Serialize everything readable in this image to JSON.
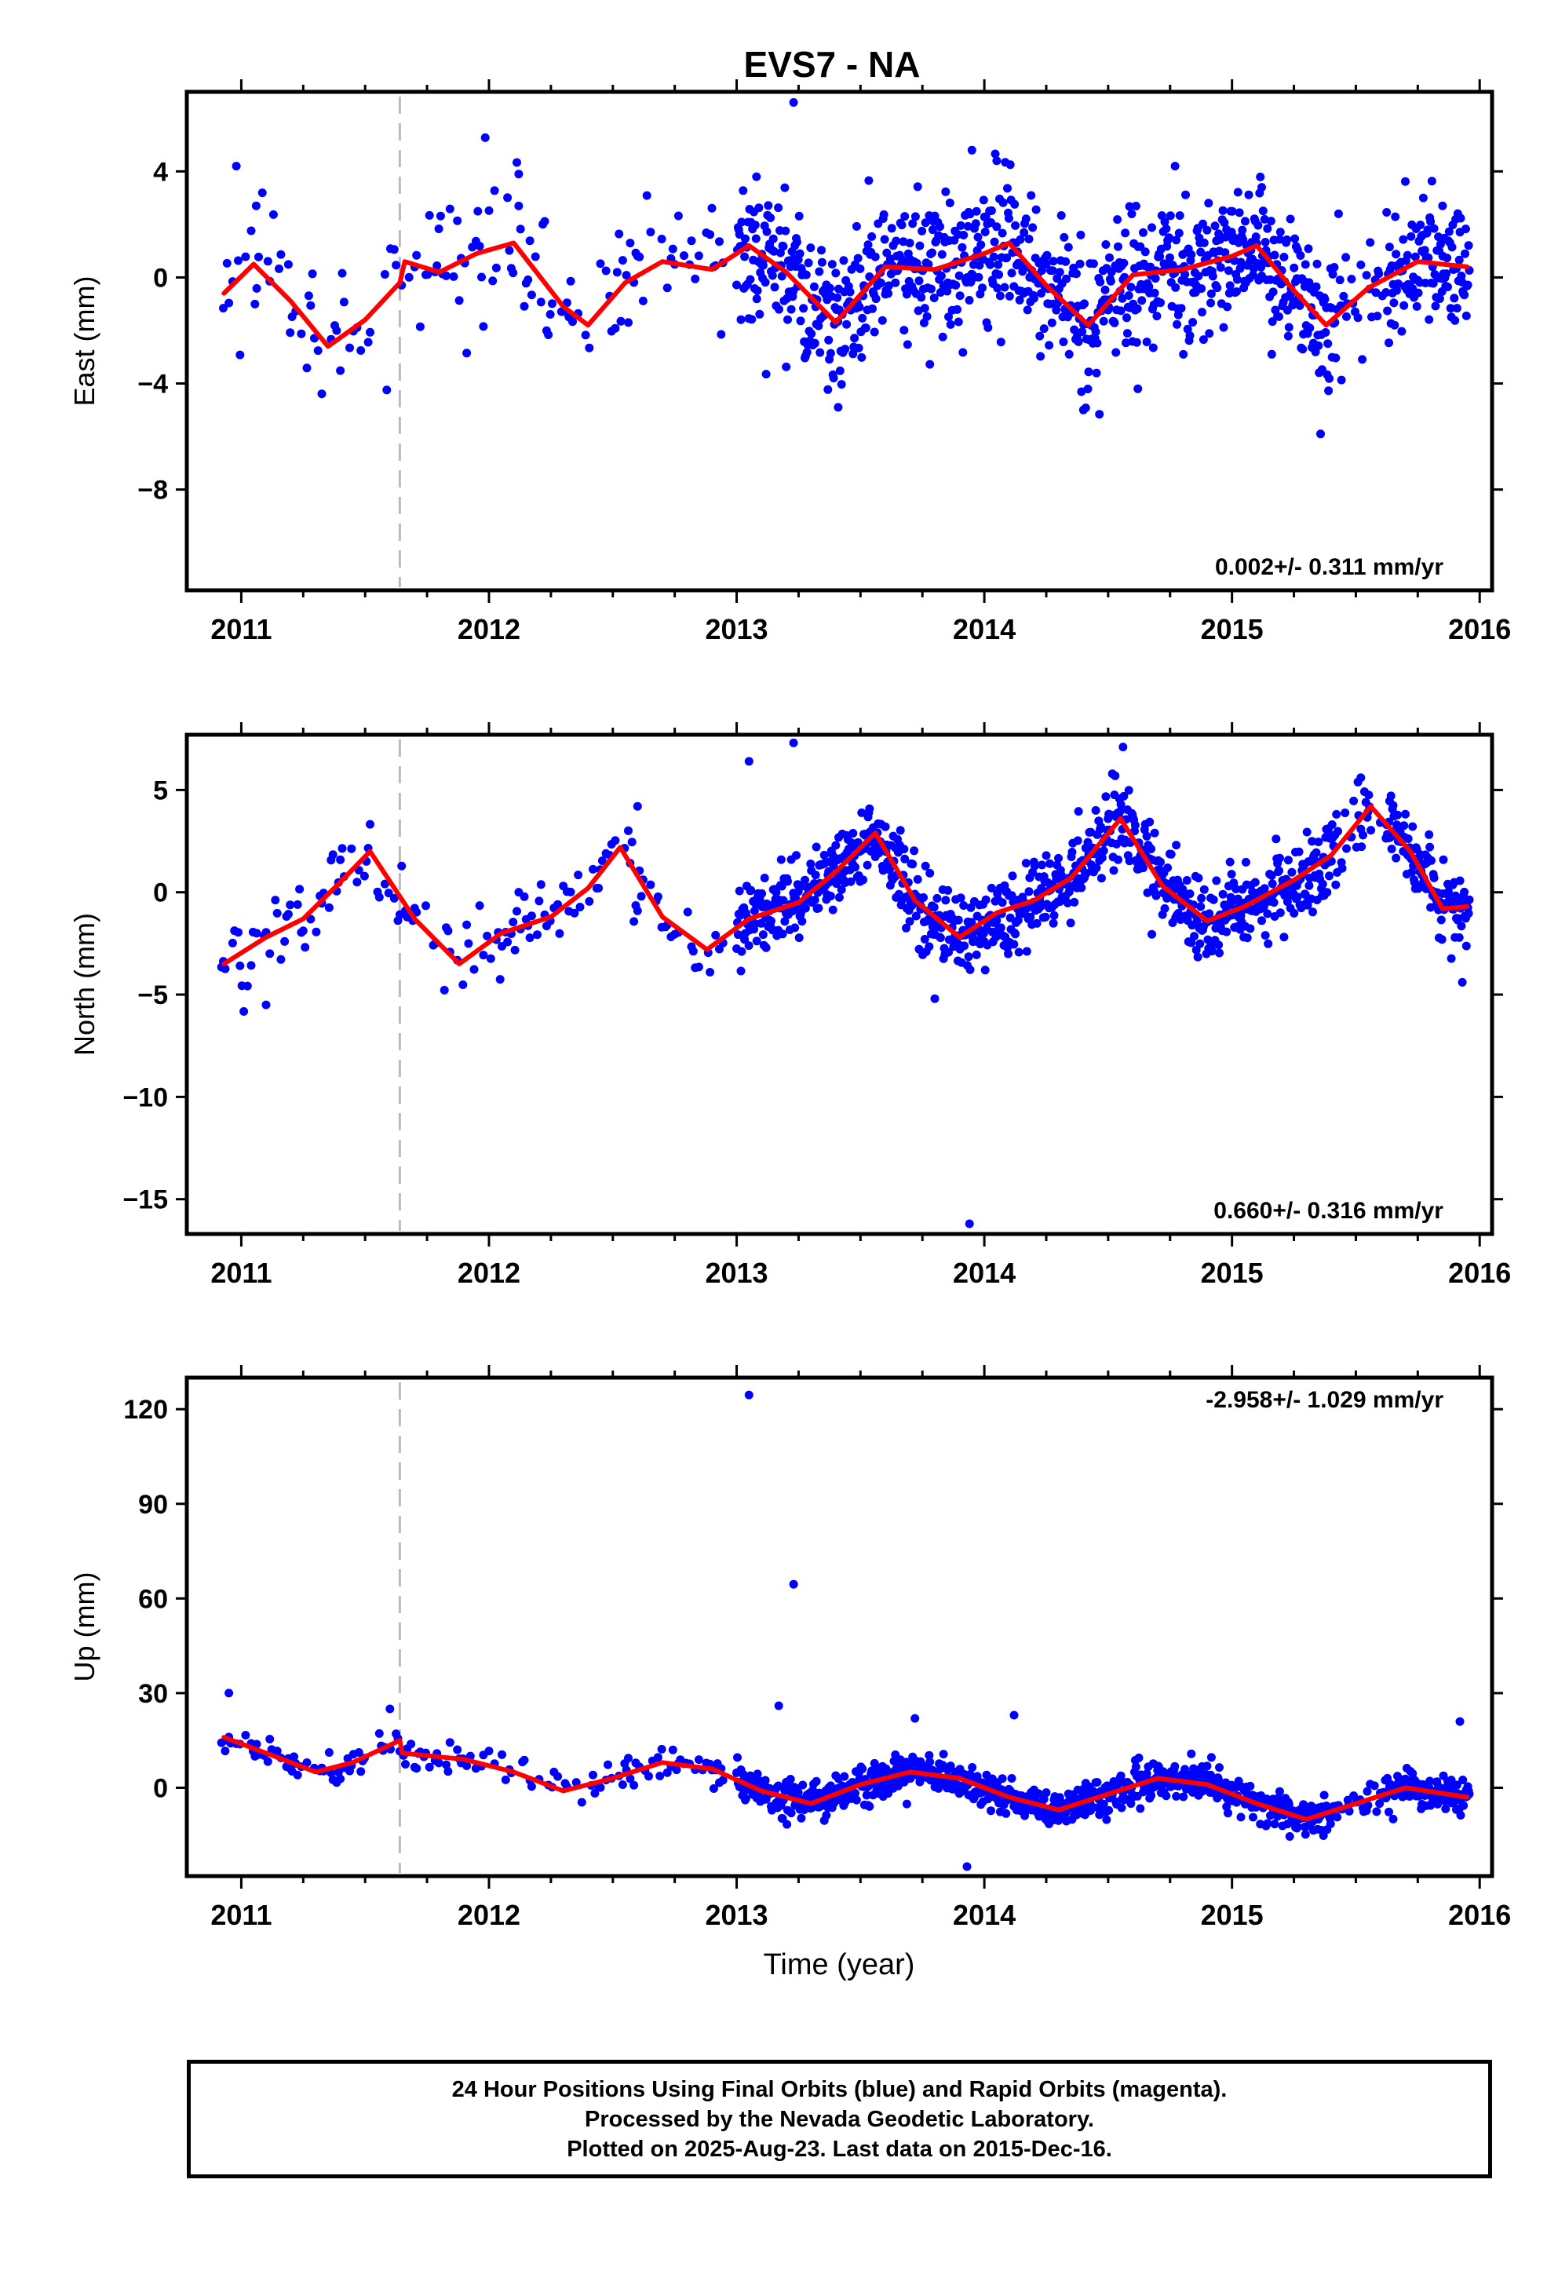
{
  "title": "EVS7 - NA",
  "xlabel": "Time (year)",
  "footer": {
    "line1": "24 Hour Positions Using Final Orbits (blue) and Rapid Orbits (magenta).",
    "line2": "Processed by the Nevada Geodetic Laboratory.",
    "line3": "Plotted on 2025-Aug-23. Last data on 2015-Dec-16."
  },
  "colors": {
    "points": "#0000ff",
    "model": "#ff0000",
    "break": "#bbbbbb",
    "axes": "#000000"
  },
  "chart_data": [
    {
      "type": "scatter",
      "component": "East",
      "ylabel": "East (mm)",
      "rate": "0.002+/- 0.311 mm/yr",
      "xlim": [
        2010.78,
        2016.05
      ],
      "ylim": [
        -11.8,
        7.0
      ],
      "yticks": [
        4,
        0,
        -4,
        -8
      ],
      "ytick_labels": [
        "4",
        "0",
        "−4",
        "−8"
      ],
      "xticks": [
        2011,
        2012,
        2013,
        2014,
        2015,
        2016
      ],
      "xtick_labels": [
        "2011",
        "2012",
        "2013",
        "2014",
        "2015",
        "2016"
      ],
      "break_epoch": 2011.64,
      "model": {
        "x": [
          2010.93,
          2011.05,
          2011.2,
          2011.35,
          2011.5,
          2011.64,
          2011.66,
          2011.8,
          2011.95,
          2012.1,
          2012.3,
          2012.4,
          2012.55,
          2012.7,
          2012.9,
          2013.05,
          2013.2,
          2013.4,
          2013.6,
          2013.8,
          2014.0,
          2014.1,
          2014.25,
          2014.42,
          2014.6,
          2014.8,
          2015.0,
          2015.1,
          2015.25,
          2015.38,
          2015.55,
          2015.75,
          2015.95
        ],
        "y": [
          -0.6,
          0.5,
          -0.9,
          -2.6,
          -1.6,
          -0.2,
          0.6,
          0.2,
          0.9,
          1.3,
          -1.1,
          -1.8,
          -0.2,
          0.6,
          0.3,
          1.2,
          0.2,
          -1.7,
          0.4,
          0.3,
          0.9,
          1.3,
          -0.3,
          -1.8,
          0.1,
          0.3,
          0.8,
          1.2,
          -0.5,
          -1.8,
          -0.4,
          0.6,
          0.4
        ]
      },
      "series": [
        {
          "name": "",
          "anchors_x": [
            2010.93,
            2011.05,
            2011.2,
            2011.35,
            2011.5,
            2011.64,
            2011.66,
            2011.8,
            2011.95,
            2012.1,
            2012.3,
            2012.4,
            2012.55,
            2012.7,
            2012.9,
            2013.05,
            2013.2,
            2013.4,
            2013.6,
            2013.8,
            2014.0,
            2014.1,
            2014.25,
            2014.42,
            2014.6,
            2014.8,
            2015.0,
            2015.1,
            2015.25,
            2015.38,
            2015.55,
            2015.75,
            2015.95
          ],
          "noise_sd": 1.3
        }
      ],
      "outliers": {
        "x": [
          2010.98,
          2011.06,
          2012.12,
          2013.08,
          2013.23,
          2013.41,
          2013.95,
          2014.05,
          2014.4,
          2014.62,
          2014.77,
          2015.12,
          2015.43,
          2015.85
        ],
        "y": [
          4.2,
          2.7,
          3.9,
          3.8,
          6.6,
          -4.9,
          4.8,
          4.4,
          -5.0,
          -4.2,
          4.2,
          3.4,
          2.4,
          2.7
        ]
      }
    },
    {
      "type": "scatter",
      "component": "North",
      "ylabel": "North (mm)",
      "rate": "0.660+/- 0.316 mm/yr",
      "xlim": [
        2010.78,
        2016.05
      ],
      "ylim": [
        -16.7,
        7.7
      ],
      "yticks": [
        5,
        0,
        -5,
        -10,
        -15
      ],
      "ytick_labels": [
        "5",
        "0",
        "−5",
        "−10",
        "−15"
      ],
      "xticks": [
        2011,
        2012,
        2013,
        2014,
        2015,
        2016
      ],
      "xtick_labels": [
        "2011",
        "2012",
        "2013",
        "2014",
        "2015",
        "2016"
      ],
      "break_epoch": 2011.64,
      "model": {
        "x": [
          2010.93,
          2011.1,
          2011.25,
          2011.4,
          2011.52,
          2011.7,
          2011.88,
          2012.05,
          2012.25,
          2012.4,
          2012.53,
          2012.7,
          2012.88,
          2013.05,
          2013.25,
          2013.4,
          2013.56,
          2013.72,
          2013.9,
          2014.05,
          2014.2,
          2014.35,
          2014.55,
          2014.72,
          2014.9,
          2015.05,
          2015.25,
          2015.4,
          2015.56,
          2015.72,
          2015.85,
          2015.95
        ],
        "y": [
          -3.5,
          -2.2,
          -1.3,
          0.5,
          2.0,
          -1.3,
          -3.5,
          -2.0,
          -1.2,
          0.2,
          2.2,
          -1.2,
          -2.8,
          -1.3,
          -0.5,
          1.0,
          2.9,
          -0.4,
          -2.2,
          -1.0,
          -0.4,
          0.7,
          3.6,
          0.3,
          -1.4,
          -0.7,
          0.6,
          1.8,
          4.2,
          2.0,
          -0.8,
          -0.7
        ]
      },
      "series": [
        {
          "name": "",
          "anchors_x": [
            2010.93,
            2011.1,
            2011.25,
            2011.4,
            2011.52,
            2011.7,
            2011.88,
            2012.05,
            2012.25,
            2012.4,
            2012.53,
            2012.7,
            2012.88,
            2013.05,
            2013.25,
            2013.4,
            2013.56,
            2013.72,
            2013.9,
            2014.05,
            2014.2,
            2014.35,
            2014.55,
            2014.72,
            2014.9,
            2015.05,
            2015.25,
            2015.4,
            2015.56,
            2015.72,
            2015.85,
            2015.95
          ],
          "noise_sd": 1.0
        }
      ],
      "outliers": {
        "x": [
          2011.1,
          2012.6,
          2013.05,
          2013.23,
          2013.8,
          2013.94,
          2014.56,
          2015.52,
          2015.93
        ],
        "y": [
          -5.5,
          4.2,
          6.4,
          7.3,
          -5.2,
          -16.2,
          7.1,
          5.6,
          -4.4
        ]
      }
    },
    {
      "type": "scatter",
      "component": "Up",
      "ylabel": "Up (mm)",
      "rate": "-2.958+/- 1.029 mm/yr",
      "xlim": [
        2010.78,
        2016.05
      ],
      "ylim": [
        -28,
        130
      ],
      "yticks": [
        120,
        90,
        60,
        30,
        0
      ],
      "ytick_labels": [
        "120",
        "90",
        "60",
        "30",
        "0"
      ],
      "xticks": [
        2011,
        2012,
        2013,
        2014,
        2015,
        2016
      ],
      "xtick_labels": [
        "2011",
        "2012",
        "2013",
        "2014",
        "2015",
        "2016"
      ],
      "break_epoch": 2011.64,
      "model": {
        "x": [
          2010.93,
          2011.1,
          2011.3,
          2011.45,
          2011.64,
          2011.65,
          2011.9,
          2012.1,
          2012.3,
          2012.5,
          2012.7,
          2012.9,
          2013.1,
          2013.3,
          2013.5,
          2013.7,
          2013.9,
          2014.1,
          2014.3,
          2014.5,
          2014.7,
          2014.9,
          2015.1,
          2015.3,
          2015.5,
          2015.7,
          2015.95
        ],
        "y": [
          16,
          11,
          5,
          8,
          15,
          11,
          9,
          5,
          -1,
          3,
          8,
          6,
          -1,
          -5,
          1,
          5,
          3,
          -3,
          -7,
          -2,
          3,
          1,
          -5,
          -10,
          -5,
          0,
          -3
        ]
      },
      "series": [
        {
          "name": "",
          "anchors_x": [
            2010.93,
            2011.1,
            2011.3,
            2011.45,
            2011.64,
            2011.65,
            2011.9,
            2012.1,
            2012.3,
            2012.5,
            2012.7,
            2012.9,
            2013.1,
            2013.3,
            2013.5,
            2013.7,
            2013.9,
            2014.1,
            2014.3,
            2014.5,
            2014.7,
            2014.9,
            2015.1,
            2015.3,
            2015.5,
            2015.7,
            2015.95
          ],
          "noise_sd": 2.8
        }
      ],
      "outliers": {
        "x": [
          2010.95,
          2011.6,
          2013.05,
          2013.17,
          2013.23,
          2013.72,
          2013.93,
          2014.12,
          2015.92
        ],
        "y": [
          30,
          25,
          124.5,
          26,
          64.5,
          22,
          -25,
          23,
          21
        ]
      }
    }
  ]
}
